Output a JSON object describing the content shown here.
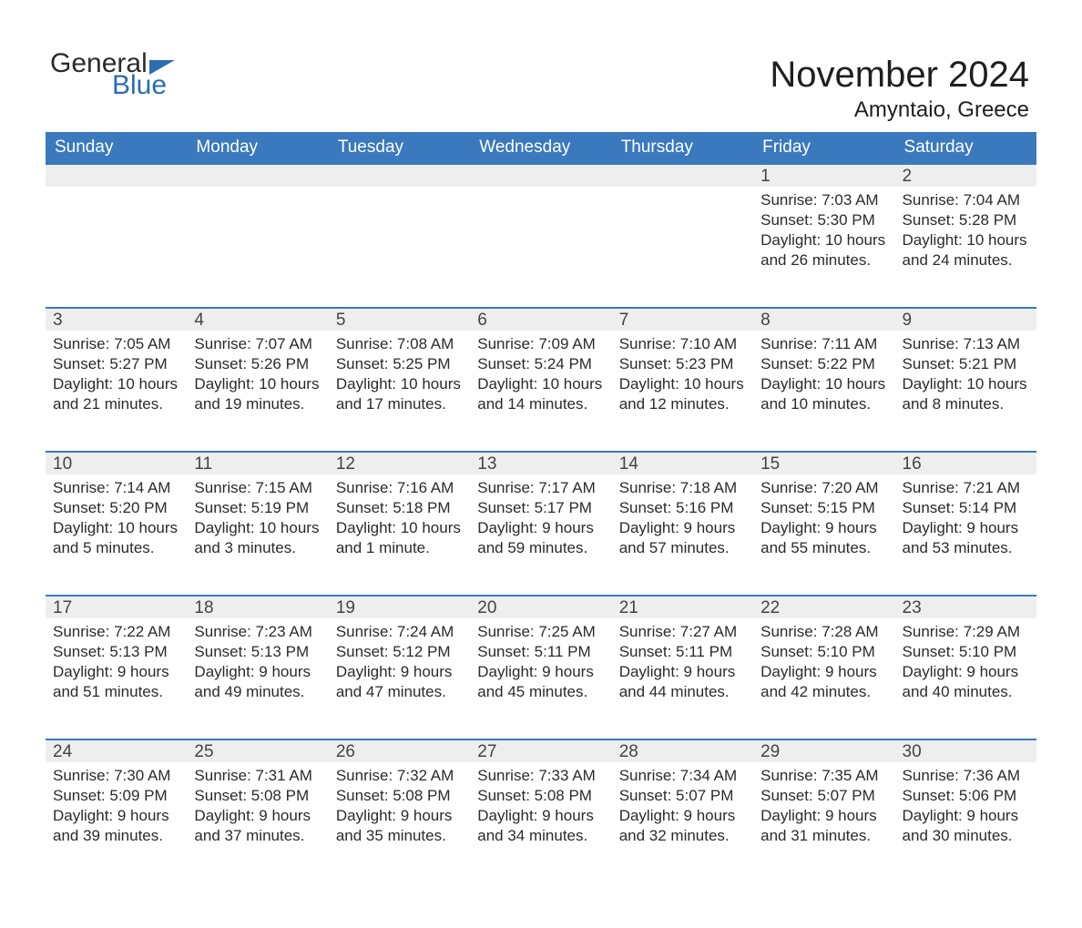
{
  "brand": {
    "word1": "General",
    "word2": "Blue",
    "color_dark": "#2b2b2b",
    "color_blue": "#2a6db3"
  },
  "title": "November 2024",
  "location": "Amyntaio, Greece",
  "colors": {
    "header_bg": "#3a79bd",
    "header_text": "#ffffff",
    "daynum_bg": "#eeeeee",
    "daynum_border": "#3a79bd",
    "body_text": "#2b2b2b",
    "page_bg": "#ffffff"
  },
  "weekdays": [
    "Sunday",
    "Monday",
    "Tuesday",
    "Wednesday",
    "Thursday",
    "Friday",
    "Saturday"
  ],
  "weeks": [
    [
      null,
      null,
      null,
      null,
      null,
      {
        "n": "1",
        "sunrise": "Sunrise: 7:03 AM",
        "sunset": "Sunset: 5:30 PM",
        "day1": "Daylight: 10 hours",
        "day2": "and 26 minutes."
      },
      {
        "n": "2",
        "sunrise": "Sunrise: 7:04 AM",
        "sunset": "Sunset: 5:28 PM",
        "day1": "Daylight: 10 hours",
        "day2": "and 24 minutes."
      }
    ],
    [
      {
        "n": "3",
        "sunrise": "Sunrise: 7:05 AM",
        "sunset": "Sunset: 5:27 PM",
        "day1": "Daylight: 10 hours",
        "day2": "and 21 minutes."
      },
      {
        "n": "4",
        "sunrise": "Sunrise: 7:07 AM",
        "sunset": "Sunset: 5:26 PM",
        "day1": "Daylight: 10 hours",
        "day2": "and 19 minutes."
      },
      {
        "n": "5",
        "sunrise": "Sunrise: 7:08 AM",
        "sunset": "Sunset: 5:25 PM",
        "day1": "Daylight: 10 hours",
        "day2": "and 17 minutes."
      },
      {
        "n": "6",
        "sunrise": "Sunrise: 7:09 AM",
        "sunset": "Sunset: 5:24 PM",
        "day1": "Daylight: 10 hours",
        "day2": "and 14 minutes."
      },
      {
        "n": "7",
        "sunrise": "Sunrise: 7:10 AM",
        "sunset": "Sunset: 5:23 PM",
        "day1": "Daylight: 10 hours",
        "day2": "and 12 minutes."
      },
      {
        "n": "8",
        "sunrise": "Sunrise: 7:11 AM",
        "sunset": "Sunset: 5:22 PM",
        "day1": "Daylight: 10 hours",
        "day2": "and 10 minutes."
      },
      {
        "n": "9",
        "sunrise": "Sunrise: 7:13 AM",
        "sunset": "Sunset: 5:21 PM",
        "day1": "Daylight: 10 hours",
        "day2": "and 8 minutes."
      }
    ],
    [
      {
        "n": "10",
        "sunrise": "Sunrise: 7:14 AM",
        "sunset": "Sunset: 5:20 PM",
        "day1": "Daylight: 10 hours",
        "day2": "and 5 minutes."
      },
      {
        "n": "11",
        "sunrise": "Sunrise: 7:15 AM",
        "sunset": "Sunset: 5:19 PM",
        "day1": "Daylight: 10 hours",
        "day2": "and 3 minutes."
      },
      {
        "n": "12",
        "sunrise": "Sunrise: 7:16 AM",
        "sunset": "Sunset: 5:18 PM",
        "day1": "Daylight: 10 hours",
        "day2": "and 1 minute."
      },
      {
        "n": "13",
        "sunrise": "Sunrise: 7:17 AM",
        "sunset": "Sunset: 5:17 PM",
        "day1": "Daylight: 9 hours",
        "day2": "and 59 minutes."
      },
      {
        "n": "14",
        "sunrise": "Sunrise: 7:18 AM",
        "sunset": "Sunset: 5:16 PM",
        "day1": "Daylight: 9 hours",
        "day2": "and 57 minutes."
      },
      {
        "n": "15",
        "sunrise": "Sunrise: 7:20 AM",
        "sunset": "Sunset: 5:15 PM",
        "day1": "Daylight: 9 hours",
        "day2": "and 55 minutes."
      },
      {
        "n": "16",
        "sunrise": "Sunrise: 7:21 AM",
        "sunset": "Sunset: 5:14 PM",
        "day1": "Daylight: 9 hours",
        "day2": "and 53 minutes."
      }
    ],
    [
      {
        "n": "17",
        "sunrise": "Sunrise: 7:22 AM",
        "sunset": "Sunset: 5:13 PM",
        "day1": "Daylight: 9 hours",
        "day2": "and 51 minutes."
      },
      {
        "n": "18",
        "sunrise": "Sunrise: 7:23 AM",
        "sunset": "Sunset: 5:13 PM",
        "day1": "Daylight: 9 hours",
        "day2": "and 49 minutes."
      },
      {
        "n": "19",
        "sunrise": "Sunrise: 7:24 AM",
        "sunset": "Sunset: 5:12 PM",
        "day1": "Daylight: 9 hours",
        "day2": "and 47 minutes."
      },
      {
        "n": "20",
        "sunrise": "Sunrise: 7:25 AM",
        "sunset": "Sunset: 5:11 PM",
        "day1": "Daylight: 9 hours",
        "day2": "and 45 minutes."
      },
      {
        "n": "21",
        "sunrise": "Sunrise: 7:27 AM",
        "sunset": "Sunset: 5:11 PM",
        "day1": "Daylight: 9 hours",
        "day2": "and 44 minutes."
      },
      {
        "n": "22",
        "sunrise": "Sunrise: 7:28 AM",
        "sunset": "Sunset: 5:10 PM",
        "day1": "Daylight: 9 hours",
        "day2": "and 42 minutes."
      },
      {
        "n": "23",
        "sunrise": "Sunrise: 7:29 AM",
        "sunset": "Sunset: 5:10 PM",
        "day1": "Daylight: 9 hours",
        "day2": "and 40 minutes."
      }
    ],
    [
      {
        "n": "24",
        "sunrise": "Sunrise: 7:30 AM",
        "sunset": "Sunset: 5:09 PM",
        "day1": "Daylight: 9 hours",
        "day2": "and 39 minutes."
      },
      {
        "n": "25",
        "sunrise": "Sunrise: 7:31 AM",
        "sunset": "Sunset: 5:08 PM",
        "day1": "Daylight: 9 hours",
        "day2": "and 37 minutes."
      },
      {
        "n": "26",
        "sunrise": "Sunrise: 7:32 AM",
        "sunset": "Sunset: 5:08 PM",
        "day1": "Daylight: 9 hours",
        "day2": "and 35 minutes."
      },
      {
        "n": "27",
        "sunrise": "Sunrise: 7:33 AM",
        "sunset": "Sunset: 5:08 PM",
        "day1": "Daylight: 9 hours",
        "day2": "and 34 minutes."
      },
      {
        "n": "28",
        "sunrise": "Sunrise: 7:34 AM",
        "sunset": "Sunset: 5:07 PM",
        "day1": "Daylight: 9 hours",
        "day2": "and 32 minutes."
      },
      {
        "n": "29",
        "sunrise": "Sunrise: 7:35 AM",
        "sunset": "Sunset: 5:07 PM",
        "day1": "Daylight: 9 hours",
        "day2": "and 31 minutes."
      },
      {
        "n": "30",
        "sunrise": "Sunrise: 7:36 AM",
        "sunset": "Sunset: 5:06 PM",
        "day1": "Daylight: 9 hours",
        "day2": "and 30 minutes."
      }
    ]
  ]
}
